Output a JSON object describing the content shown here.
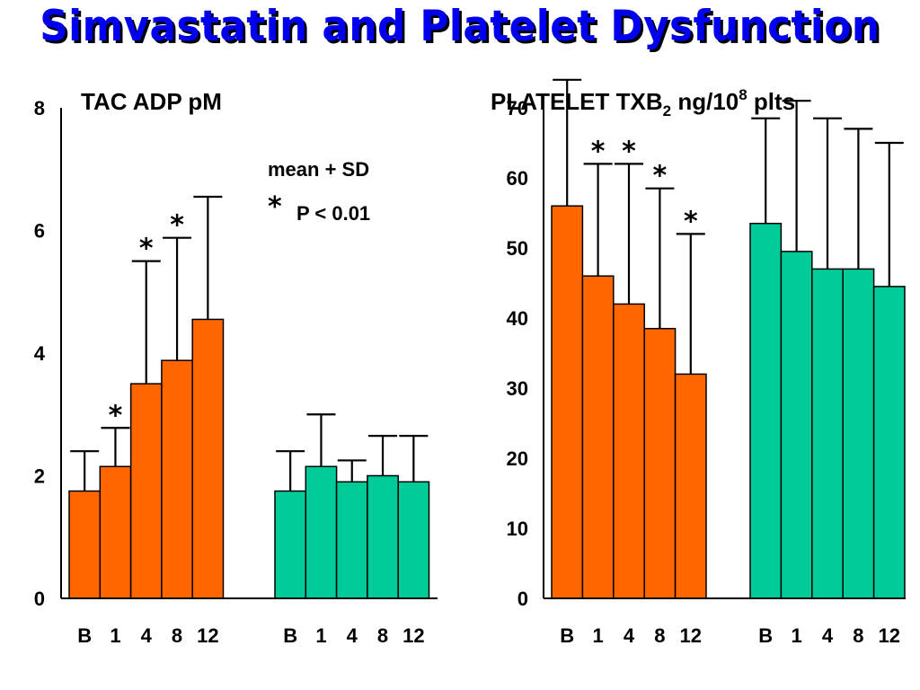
{
  "title": "Simvastatin and Platelet Dysfunction",
  "colors": {
    "group1": "#ff6600",
    "group2": "#00cc99",
    "title": "#0000ee",
    "axis": "#000000"
  },
  "chart_data": [
    {
      "type": "bar",
      "title": "TAC ADP pM",
      "ylim": [
        0,
        8
      ],
      "yticks": [
        "0",
        "2",
        "4",
        "6",
        "8"
      ],
      "categories": [
        "B",
        "1",
        "4",
        "8",
        "12"
      ],
      "series": [
        {
          "values": [
            1.75,
            2.15,
            3.5,
            3.88,
            4.55
          ],
          "error_upper": [
            2.4,
            2.78,
            5.5,
            5.88,
            6.55
          ],
          "significant": [
            false,
            true,
            true,
            true,
            false
          ]
        },
        {
          "values": [
            1.75,
            2.15,
            1.9,
            2.0,
            1.9
          ],
          "error_upper": [
            2.4,
            3.0,
            2.25,
            2.65,
            2.65
          ],
          "significant": [
            false,
            false,
            false,
            false,
            false
          ]
        }
      ],
      "legend": {
        "line1": "mean + SD",
        "star": "*",
        "line2": "P < 0.01"
      }
    },
    {
      "type": "bar",
      "title_main": "PLATELET TXB",
      "title_sub": "2",
      "title_mid": " ng/10",
      "title_sup": "8",
      "title_end": " plts",
      "ylim": [
        0,
        70
      ],
      "yticks": [
        "0",
        "10",
        "20",
        "30",
        "40",
        "50",
        "60",
        "70"
      ],
      "categories": [
        "B",
        "1",
        "4",
        "8",
        "12"
      ],
      "series": [
        {
          "values": [
            56,
            46,
            42,
            38.5,
            32
          ],
          "error_upper": [
            74,
            62,
            62,
            58.5,
            52
          ],
          "significant": [
            false,
            true,
            true,
            true,
            true
          ]
        },
        {
          "values": [
            53.5,
            49.5,
            47,
            47,
            44.5
          ],
          "error_upper": [
            68.5,
            71,
            68.5,
            67,
            65
          ],
          "significant": [
            false,
            false,
            false,
            false,
            false
          ]
        }
      ]
    }
  ]
}
